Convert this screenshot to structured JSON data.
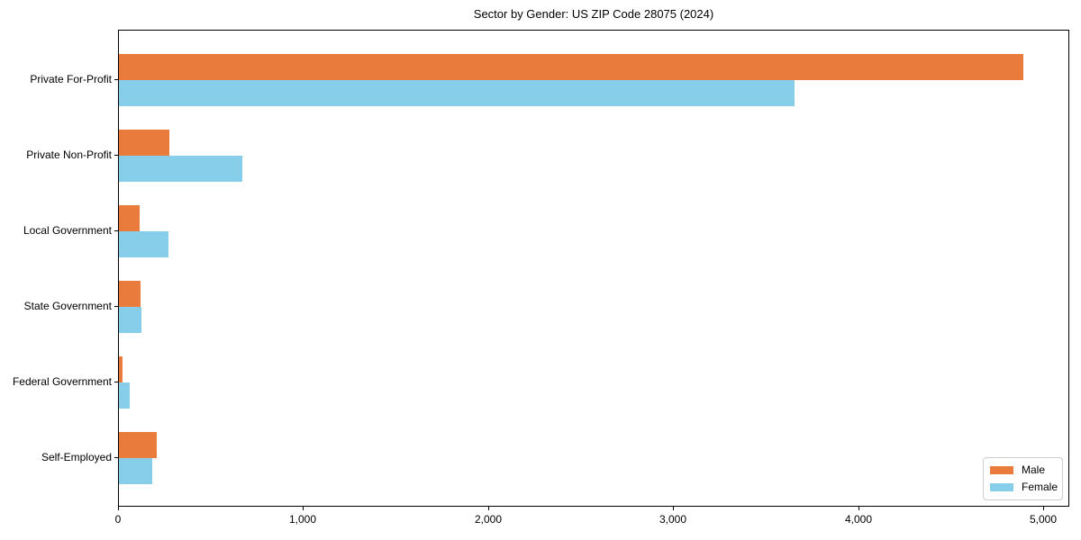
{
  "chart_data": {
    "type": "bar",
    "orientation": "horizontal",
    "title": "Sector by Gender: US ZIP Code 28075 (2024)",
    "categories": [
      "Private For-Profit",
      "Private Non-Profit",
      "Local Government",
      "State Government",
      "Federal Government",
      "Self-Employed"
    ],
    "series": [
      {
        "name": "Male",
        "color": "#e97c3d",
        "values": [
          4897,
          273,
          112,
          117,
          20,
          205
        ]
      },
      {
        "name": "Female",
        "color": "#87ceeb",
        "values": [
          3660,
          668,
          268,
          122,
          58,
          180
        ]
      }
    ],
    "xlabel": "",
    "ylabel": "",
    "xlim": [
      0,
      5141
    ],
    "xticks": [
      0,
      1000,
      2000,
      3000,
      4000,
      5000
    ],
    "xtick_labels": [
      "0",
      "1,000",
      "2,000",
      "3,000",
      "4,000",
      "5,000"
    ],
    "grid": false,
    "legend": {
      "position": "lower right",
      "entries": [
        "Male",
        "Female"
      ]
    },
    "axis_color": "#000000",
    "background_color": "#ffffff"
  }
}
